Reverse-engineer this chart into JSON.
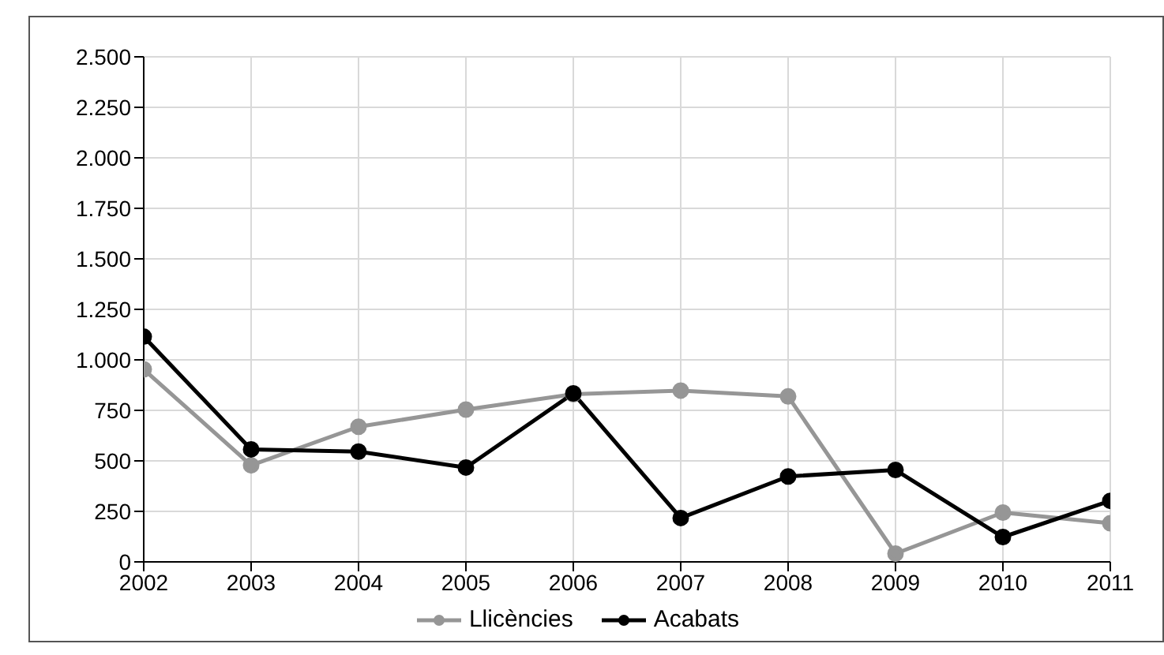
{
  "chart_data": {
    "type": "line",
    "x": [
      2002,
      2003,
      2004,
      2005,
      2006,
      2007,
      2008,
      2009,
      2010,
      2011
    ],
    "series": [
      {
        "name": "Llicències",
        "color": "#969696",
        "values": [
          953,
          478,
          669,
          754,
          830,
          848,
          819,
          41,
          244,
          191
        ]
      },
      {
        "name": "Acabats",
        "color": "#000000",
        "values": [
          1115,
          557,
          546,
          467,
          834,
          217,
          423,
          455,
          123,
          302
        ]
      }
    ],
    "xlim": [
      2002,
      2011
    ],
    "xticks": [
      2002,
      2003,
      2004,
      2005,
      2006,
      2007,
      2008,
      2009,
      2010,
      2011
    ],
    "ylim": [
      0,
      2500
    ],
    "yticks": [
      0,
      250,
      500,
      750,
      {
        "value": 1000,
        "label": "1.000"
      },
      {
        "value": 1250,
        "label": "1.250"
      },
      {
        "value": 1500,
        "label": "1.500"
      },
      {
        "value": 1750,
        "label": "1.750"
      },
      {
        "value": 2000,
        "label": "2.000"
      },
      {
        "value": 2250,
        "label": "2.250"
      },
      {
        "value": 2500,
        "label": "2.500"
      }
    ],
    "grid": true,
    "legend": "bottom",
    "marker": "circle",
    "line_style": "solid"
  }
}
